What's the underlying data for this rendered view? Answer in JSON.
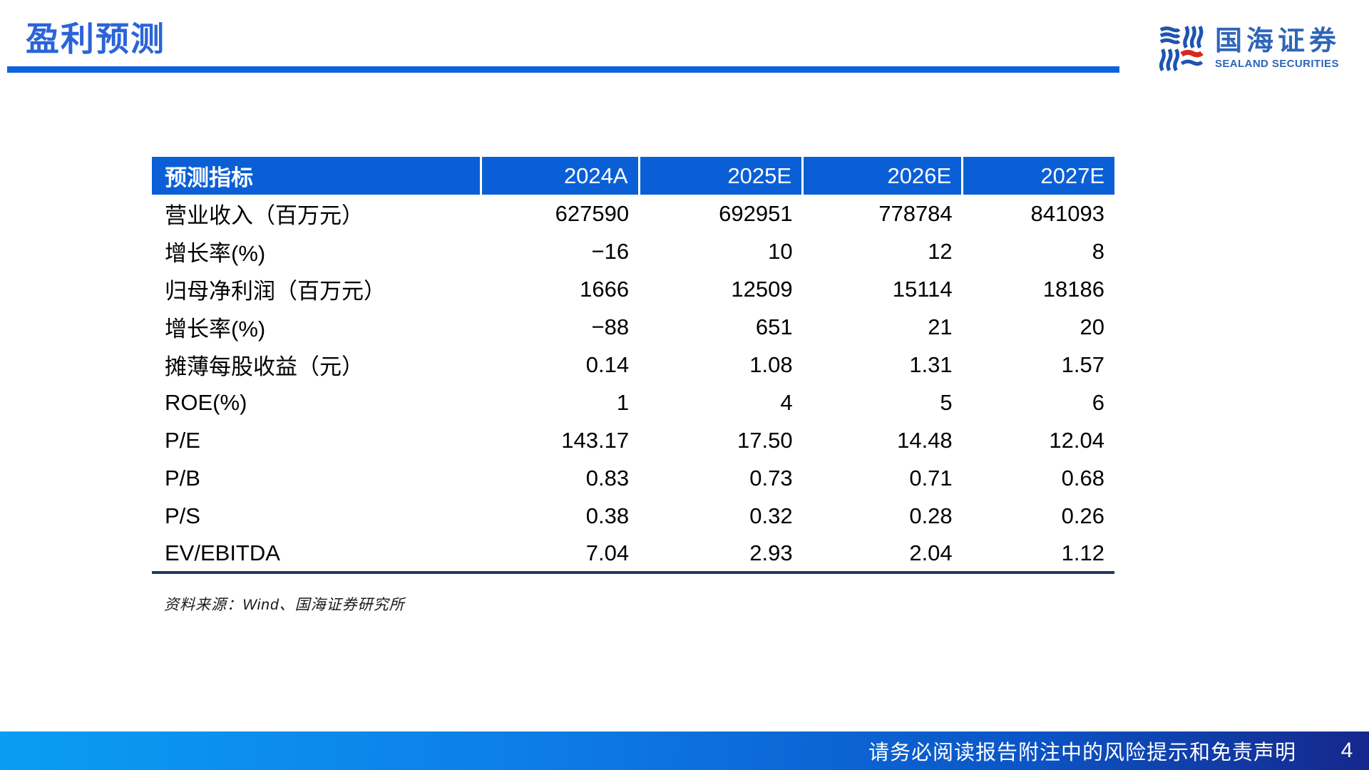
{
  "page": {
    "title": "盈利预测",
    "footer_disclaimer": "请务必阅读报告附注中的风险提示和免责声明",
    "page_number": "4"
  },
  "logo": {
    "name_cn": "国海证券",
    "name_en": "SEALAND SECURITIES"
  },
  "table": {
    "columns": [
      "预测指标",
      "2024A",
      "2025E",
      "2026E",
      "2027E"
    ],
    "rows": [
      {
        "label": "营业收入（百万元）",
        "values": [
          "627590",
          "692951",
          "778784",
          "841093"
        ]
      },
      {
        "label": "增长率(%)",
        "values": [
          "−16",
          "10",
          "12",
          "8"
        ]
      },
      {
        "label": "归母净利润（百万元）",
        "values": [
          "1666",
          "12509",
          "15114",
          "18186"
        ]
      },
      {
        "label": "增长率(%)",
        "values": [
          "−88",
          "651",
          "21",
          "20"
        ]
      },
      {
        "label": "摊薄每股收益（元）",
        "values": [
          "0.14",
          "1.08",
          "1.31",
          "1.57"
        ]
      },
      {
        "label": "ROE(%)",
        "values": [
          "1",
          "4",
          "5",
          "6"
        ]
      },
      {
        "label": "P/E",
        "values": [
          "143.17",
          "17.50",
          "14.48",
          "12.04"
        ]
      },
      {
        "label": "P/B",
        "values": [
          "0.83",
          "0.73",
          "0.71",
          "0.68"
        ]
      },
      {
        "label": "P/S",
        "values": [
          "0.38",
          "0.32",
          "0.28",
          "0.26"
        ]
      },
      {
        "label": "EV/EBITDA",
        "values": [
          "7.04",
          "2.93",
          "2.04",
          "1.12"
        ]
      }
    ],
    "source_note": "资料来源：Wind、国海证券研究所"
  },
  "colors": {
    "title_blue": "#2a64d8",
    "rule_blue": "#0f62de",
    "table_header_blue": "#0b5fd6",
    "table_border_navy": "#1f3864",
    "footer_gradient_left": "#0a9df4",
    "footer_gradient_right": "#15278c",
    "logo_blue": "#2e66b8",
    "logo_mark_blue": "#1d54ae",
    "logo_mark_red": "#d6281f"
  }
}
